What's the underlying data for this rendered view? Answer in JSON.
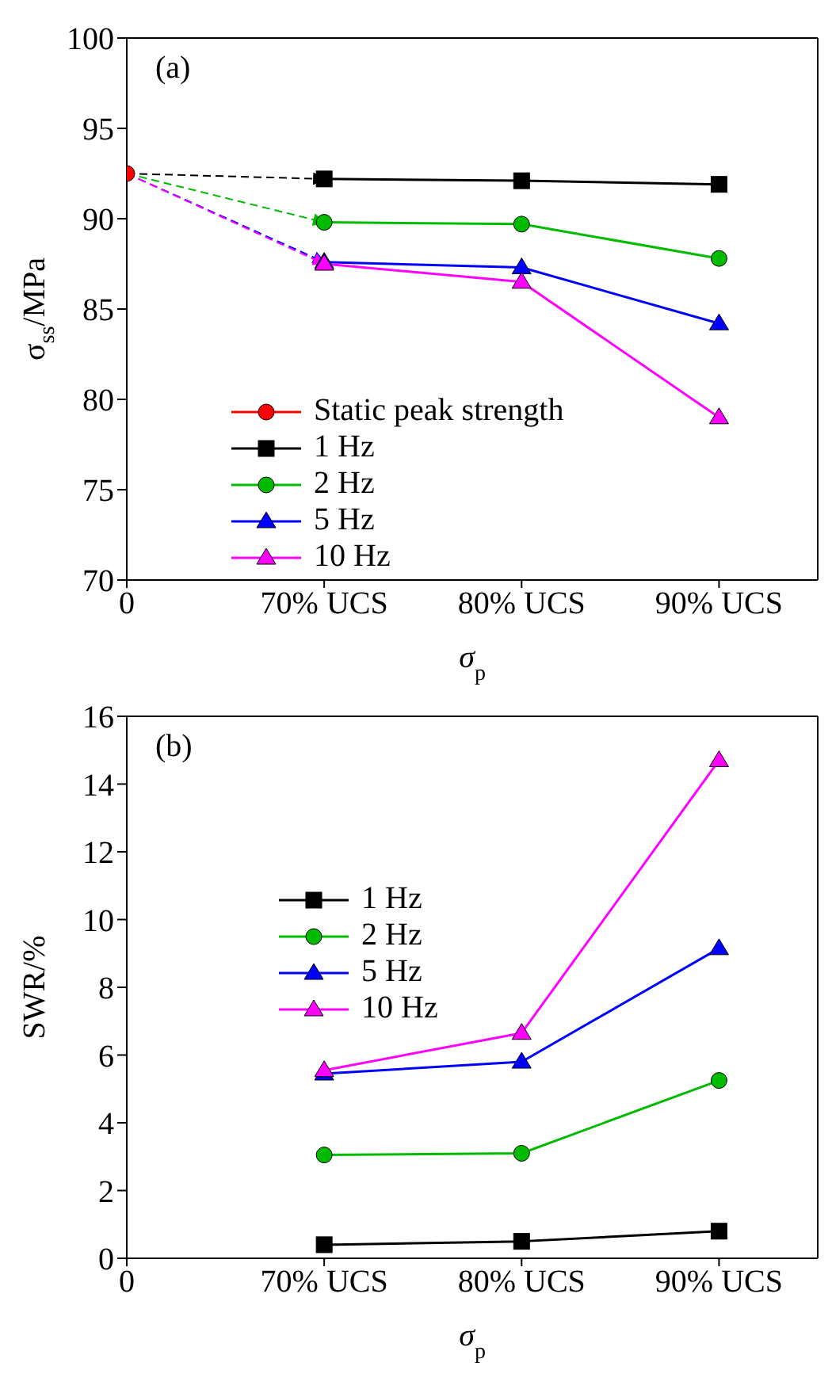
{
  "chart_data": [
    {
      "type": "line",
      "title": "(a)",
      "xlabel": "σ$_{p}$",
      "ylabel": "σ$_{ss}$/MPa",
      "categories": [
        "0",
        "70% UCS",
        "80% UCS",
        "90% UCS"
      ],
      "series": [
        {
          "name": "Static peak strength",
          "color": "#ff0000",
          "marker": "circle",
          "values": [
            92.5,
            null,
            null,
            null
          ]
        },
        {
          "name": "1 Hz",
          "color": "#000000",
          "marker": "square",
          "values": [
            null,
            92.2,
            92.1,
            91.9
          ]
        },
        {
          "name": "2 Hz",
          "color": "#00bb00",
          "marker": "circle",
          "values": [
            null,
            89.8,
            89.7,
            87.8
          ]
        },
        {
          "name": "5 Hz",
          "color": "#0000ff",
          "marker": "triangle",
          "values": [
            null,
            87.6,
            87.3,
            84.2
          ]
        },
        {
          "name": "10 Hz",
          "color": "#ff00ff",
          "marker": "triangle",
          "values": [
            null,
            87.5,
            86.5,
            79.0
          ]
        }
      ],
      "ylim": [
        70,
        100
      ],
      "yticks": [
        70,
        75,
        80,
        85,
        90,
        95,
        100
      ],
      "grid": false,
      "legend": "bottom left",
      "line_style": "solid"
    },
    {
      "type": "line",
      "title": "(b)",
      "xlabel": "σ$_{p}$",
      "ylabel": "SWR/%",
      "categories": [
        "0",
        "70% UCS",
        "80% UCS",
        "90% UCS"
      ],
      "series": [
        {
          "name": "1 Hz",
          "color": "#000000",
          "marker": "square",
          "values": [
            null,
            0.4,
            0.5,
            0.8
          ]
        },
        {
          "name": "2 Hz",
          "color": "#00bb00",
          "marker": "circle",
          "values": [
            null,
            3.05,
            3.1,
            5.25
          ]
        },
        {
          "name": "5 Hz",
          "color": "#0000ff",
          "marker": "triangle",
          "values": [
            null,
            5.45,
            5.8,
            9.15
          ]
        },
        {
          "name": "10 Hz",
          "color": "#ff00ff",
          "marker": "triangle",
          "values": [
            null,
            5.55,
            6.65,
            14.7
          ]
        }
      ],
      "ylim": [
        0,
        16
      ],
      "yticks": [
        0,
        2,
        4,
        6,
        8,
        10,
        12,
        14,
        16
      ],
      "grid": false,
      "legend": "top left",
      "line_style": "solid"
    }
  ]
}
